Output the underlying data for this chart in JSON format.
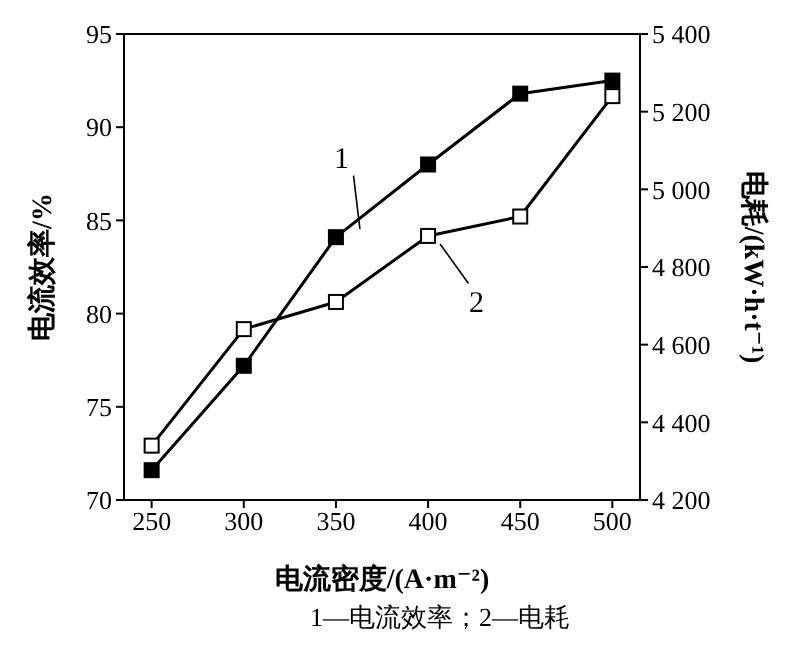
{
  "chart_data": {
    "type": "line",
    "xlabel": "电流密度/(A·m⁻²)",
    "ylabel": "电流效率/%",
    "y2label": "电耗/(kW·h·t⁻¹)",
    "x": [
      250,
      300,
      350,
      400,
      450,
      500
    ],
    "series": [
      {
        "name": "1",
        "color": "#000000",
        "values": [
          71.6,
          77.2,
          84.1,
          88.0,
          91.8,
          92.5
        ]
      },
      {
        "name": "2",
        "color": "#000000",
        "axis": "y2",
        "values": [
          4340,
          4640,
          4710,
          4880,
          4930,
          5240
        ]
      }
    ],
    "xlim": [
      235,
      515
    ],
    "xticks": [
      250,
      300,
      350,
      400,
      450,
      500
    ],
    "ylim": [
      70,
      95
    ],
    "yticks": [
      70,
      75,
      80,
      85,
      90,
      95
    ],
    "y2lim": [
      4200,
      5400
    ],
    "y2ticks": [
      {
        "value": 4200,
        "label": "4 200"
      },
      {
        "value": 4400,
        "label": "4 400"
      },
      {
        "value": 4600,
        "label": "4 600"
      },
      {
        "value": 4800,
        "label": "4 800"
      },
      {
        "value": 5000,
        "label": "5 000"
      },
      {
        "value": 5200,
        "label": "5 200"
      },
      {
        "value": 5400,
        "label": "5 400"
      }
    ],
    "annotations": [
      "1—电流效率；2—电耗"
    ],
    "marker": "square",
    "line_style": "solid",
    "grid": false
  }
}
